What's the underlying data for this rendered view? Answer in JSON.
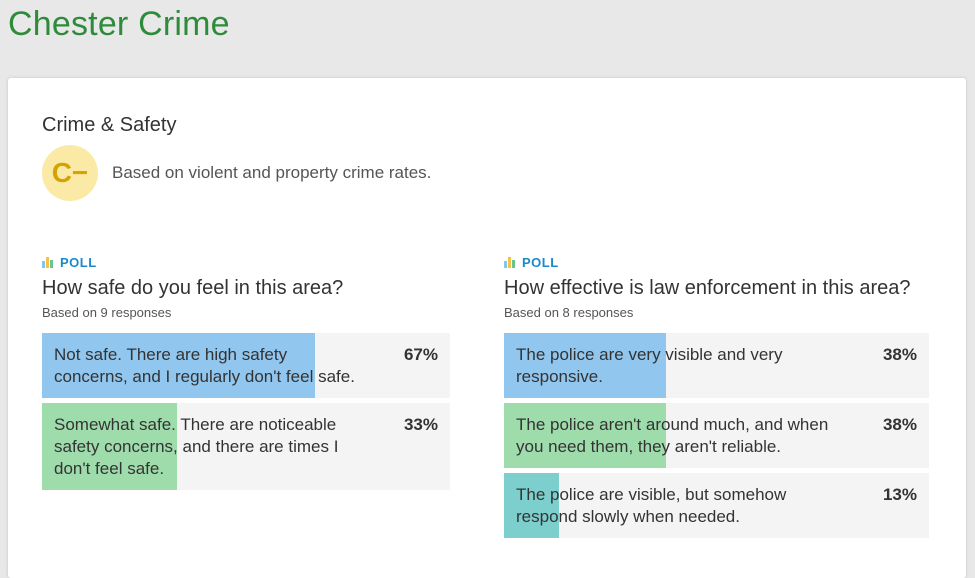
{
  "header": {
    "title": "Chester Crime"
  },
  "section": {
    "title": "Crime & Safety",
    "grade": "C−",
    "grade_description": "Based on violent and property crime rates."
  },
  "polls": [
    {
      "label": "POLL",
      "question": "How safe do you feel in this area?",
      "responses": "Based on 9 responses",
      "answers": [
        {
          "text": "Not safe. There are high safety concerns, and I regularly don't feel safe.",
          "percent_label": "67%",
          "percent": 67,
          "color": "#91c6ee"
        },
        {
          "text": "Somewhat safe. There are noticeable safety concerns, and there are times I don't feel safe.",
          "percent_label": "33%",
          "percent": 33,
          "color": "#9fdcab"
        }
      ]
    },
    {
      "label": "POLL",
      "question": "How effective is law enforcement in this area?",
      "responses": "Based on 8 responses",
      "answers": [
        {
          "text": "The police are very visible and very responsive.",
          "percent_label": "38%",
          "percent": 38,
          "color": "#91c6ee"
        },
        {
          "text": "The police aren't around much, and when you need them, they aren't reliable.",
          "percent_label": "38%",
          "percent": 38,
          "color": "#9fdcab"
        },
        {
          "text": "The police are visible, but somehow respond slowly when needed.",
          "percent_label": "13%",
          "percent": 13,
          "color": "#7dcfcd"
        }
      ]
    }
  ]
}
